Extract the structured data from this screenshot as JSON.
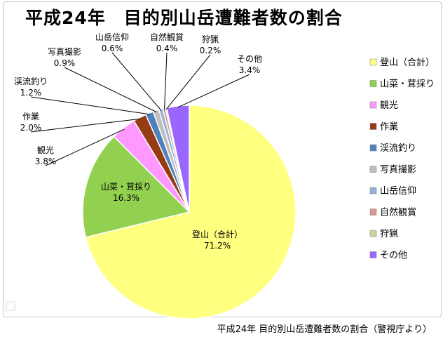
{
  "caption": "平成24年 目的別山岳遭難者数の割合（警視庁より）",
  "chart_data": {
    "type": "pie",
    "title": "平成24年　目的別山岳遭難者数の割合",
    "legend_position": "right",
    "slices": [
      {
        "label": "登山（合計）",
        "value": 71.2,
        "display": "71.2%",
        "color": "#ffff80"
      },
      {
        "label": "山菜・茸採り",
        "value": 16.3,
        "display": "16.3%",
        "color": "#92d050"
      },
      {
        "label": "観光",
        "value": 3.8,
        "display": "3.8%",
        "color": "#ff99ff"
      },
      {
        "label": "作業",
        "value": 2.0,
        "display": "2.0%",
        "color": "#963c14"
      },
      {
        "label": "渓流釣り",
        "value": 1.2,
        "display": "1.2%",
        "color": "#4f81bd"
      },
      {
        "label": "写真撮影",
        "value": 0.9,
        "display": "0.9%",
        "color": "#bfbfbf"
      },
      {
        "label": "山岳信仰",
        "value": 0.6,
        "display": "0.6%",
        "color": "#95b3d7"
      },
      {
        "label": "自然観賞",
        "value": 0.4,
        "display": "0.4%",
        "color": "#d99694"
      },
      {
        "label": "狩猟",
        "value": 0.2,
        "display": "0.2%",
        "color": "#c3d69b"
      },
      {
        "label": "その他",
        "value": 3.4,
        "display": "3.4%",
        "color": "#9966ff"
      }
    ]
  }
}
